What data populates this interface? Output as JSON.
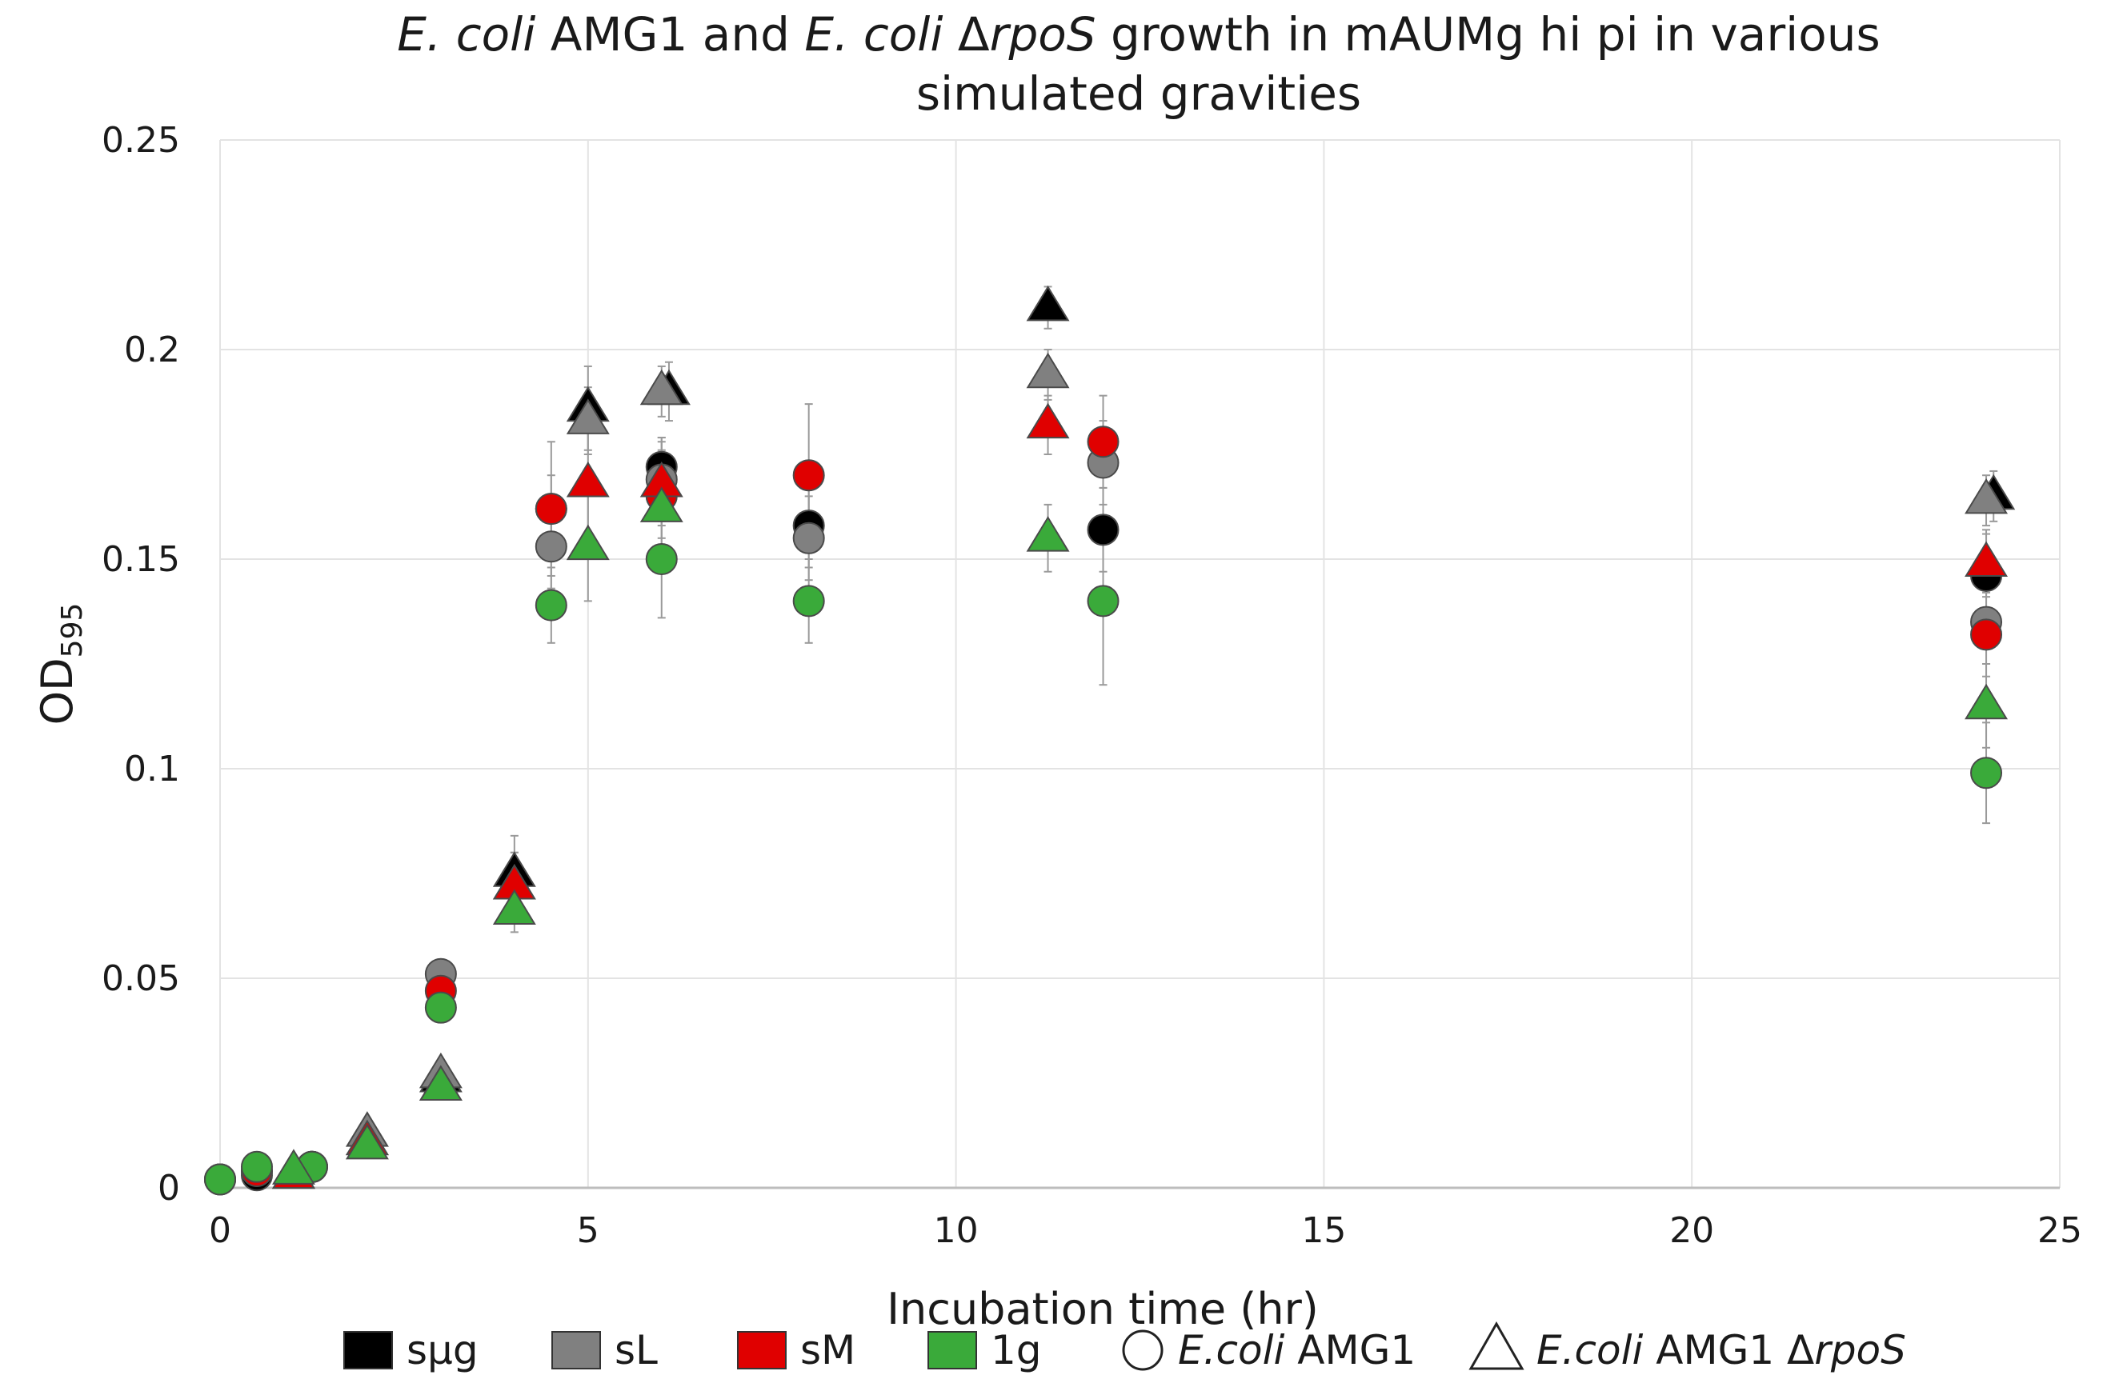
{
  "chart_data": {
    "type": "scatter",
    "title_lines": [
      [
        {
          "text": "E. coli",
          "italic": true
        },
        {
          "text": " AMG1 and ",
          "italic": false
        },
        {
          "text": "E. coli",
          "italic": true
        },
        {
          "text": " Δ",
          "italic": false
        },
        {
          "text": "rpoS",
          "italic": true
        },
        {
          "text": " growth in mAUMg hi pi in various",
          "italic": false
        }
      ],
      [
        {
          "text": "simulated gravities",
          "italic": false
        }
      ]
    ],
    "xlabel": "Incubation time (hr)",
    "ylabel": {
      "main": "OD",
      "sub": "595"
    },
    "xlim": [
      0,
      25
    ],
    "ylim": [
      0,
      0.25
    ],
    "xticks": [
      0,
      5,
      10,
      15,
      20,
      25
    ],
    "xtick_labels": [
      "0",
      "5",
      "10",
      "15",
      "20",
      "25"
    ],
    "yticks": [
      0,
      0.05,
      0.1,
      0.15,
      0.2,
      0.25
    ],
    "ytick_labels": [
      "0",
      "0.05",
      "0.1",
      "0.15",
      "0.2",
      "0.25"
    ],
    "grid": true,
    "legend_position": "bottom",
    "legend": {
      "colors": [
        {
          "label": "sμg",
          "color": "#000000"
        },
        {
          "label": "sL",
          "color": "#808080"
        },
        {
          "label": "sM",
          "color": "#e00000"
        },
        {
          "label": "1g",
          "color": "#3aaa3a"
        }
      ],
      "shapes": [
        {
          "shape": "circle",
          "label": [
            {
              "text": "E.coli",
              "italic": true
            },
            {
              "text": " AMG1",
              "italic": false
            }
          ]
        },
        {
          "shape": "triangle",
          "label": [
            {
              "text": "E.coli",
              "italic": true
            },
            {
              "text": " AMG1 Δ",
              "italic": false
            },
            {
              "text": "rpoS",
              "italic": true
            }
          ]
        }
      ]
    },
    "series": [
      {
        "gravity": "sμg",
        "strain": "AMG1",
        "marker": "circle",
        "color": "#000000",
        "points": [
          [
            0,
            0.002,
            0
          ],
          [
            0.5,
            0.003,
            0
          ],
          [
            1.25,
            0.005,
            0
          ],
          [
            4.5,
            0.162,
            0.008
          ],
          [
            6,
            0.172,
            0.007
          ],
          [
            8,
            0.158,
            0.01
          ],
          [
            12,
            0.157,
            0.01
          ],
          [
            24,
            0.146,
            0.01
          ]
        ]
      },
      {
        "gravity": "sL",
        "strain": "AMG1",
        "marker": "circle",
        "color": "#808080",
        "points": [
          [
            0,
            0.002,
            0
          ],
          [
            0.5,
            0.004,
            0
          ],
          [
            1.25,
            0.005,
            0
          ],
          [
            3,
            0.051,
            0.003
          ],
          [
            4.5,
            0.153,
            0.01
          ],
          [
            6,
            0.169,
            0.01
          ],
          [
            8,
            0.155,
            0.01
          ],
          [
            12,
            0.173,
            0.01
          ],
          [
            24,
            0.135,
            0.01
          ]
        ]
      },
      {
        "gravity": "sM",
        "strain": "AMG1",
        "marker": "circle",
        "color": "#e00000",
        "points": [
          [
            0,
            0.002,
            0
          ],
          [
            0.5,
            0.004,
            0
          ],
          [
            1.25,
            0.005,
            0
          ],
          [
            3,
            0.047,
            0.003
          ],
          [
            4.5,
            0.162,
            0.016
          ],
          [
            6,
            0.165,
            0.01
          ],
          [
            8,
            0.17,
            0.017
          ],
          [
            12,
            0.178,
            0.011
          ],
          [
            24,
            0.132,
            0.01
          ]
        ]
      },
      {
        "gravity": "1g",
        "strain": "AMG1",
        "marker": "circle",
        "color": "#3aaa3a",
        "points": [
          [
            0,
            0.002,
            0
          ],
          [
            0.5,
            0.005,
            0
          ],
          [
            1.25,
            0.005,
            0
          ],
          [
            3,
            0.043,
            0.003
          ],
          [
            4.5,
            0.139,
            0.009
          ],
          [
            6,
            0.15,
            0.014
          ],
          [
            8,
            0.14,
            0.01
          ],
          [
            12,
            0.14,
            0.02
          ],
          [
            24,
            0.099,
            0.012
          ]
        ]
      },
      {
        "gravity": "sμg",
        "strain": "AMG1 ΔrpoS",
        "marker": "triangle",
        "color": "#000000",
        "points": [
          [
            1,
            0.003,
            0
          ],
          [
            2,
            0.011,
            0
          ],
          [
            3,
            0.026,
            0.002
          ],
          [
            4,
            0.075,
            0.009
          ],
          [
            5,
            0.186,
            0.01
          ],
          [
            6.1,
            0.19,
            0.007
          ],
          [
            11.25,
            0.21,
            0.005
          ],
          [
            24.1,
            0.165,
            0.006
          ]
        ]
      },
      {
        "gravity": "sL",
        "strain": "AMG1 ΔrpoS",
        "marker": "triangle",
        "color": "#808080",
        "points": [
          [
            1,
            0.003,
            0
          ],
          [
            2,
            0.013,
            0
          ],
          [
            3,
            0.027,
            0.002
          ],
          [
            4,
            0.072,
            0.008
          ],
          [
            5,
            0.183,
            0.008
          ],
          [
            6,
            0.19,
            0.006
          ],
          [
            11.25,
            0.194,
            0.006
          ],
          [
            24,
            0.164,
            0.006
          ]
        ]
      },
      {
        "gravity": "sM",
        "strain": "AMG1 ΔrpoS",
        "marker": "triangle",
        "color": "#e00000",
        "points": [
          [
            1,
            0.003,
            0
          ],
          [
            2,
            0.011,
            0
          ],
          [
            3,
            0.024,
            0.002
          ],
          [
            4,
            0.072,
            0.008
          ],
          [
            5,
            0.168,
            0.013
          ],
          [
            6,
            0.168,
            0.01
          ],
          [
            11.25,
            0.182,
            0.007
          ],
          [
            24,
            0.149,
            0.008
          ]
        ]
      },
      {
        "gravity": "1g",
        "strain": "AMG1 ΔrpoS",
        "marker": "triangle",
        "color": "#3aaa3a",
        "points": [
          [
            1,
            0.004,
            0
          ],
          [
            2,
            0.01,
            0
          ],
          [
            3,
            0.024,
            0.002
          ],
          [
            4,
            0.066,
            0.005
          ],
          [
            5,
            0.153,
            0.013
          ],
          [
            6,
            0.162,
            0.014
          ],
          [
            11.25,
            0.155,
            0.008
          ],
          [
            24,
            0.115,
            0.01
          ]
        ]
      }
    ]
  }
}
